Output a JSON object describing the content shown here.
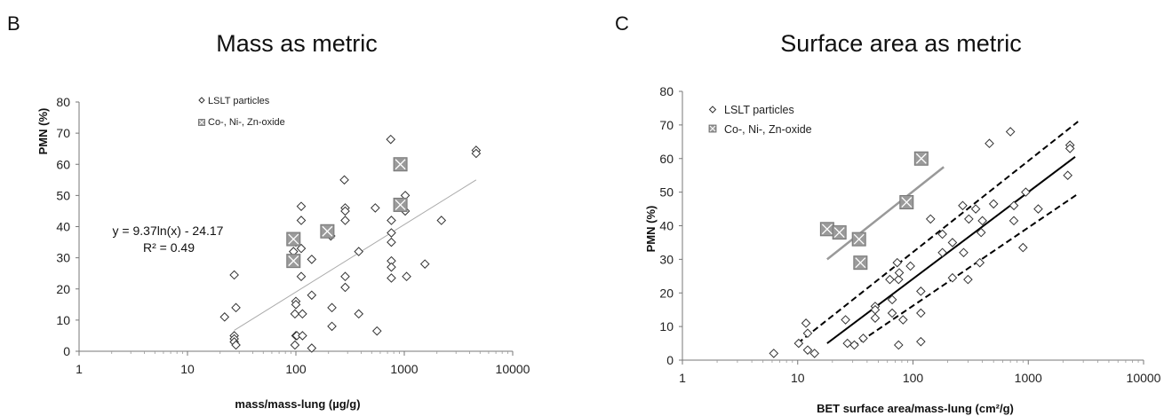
{
  "chart_data": [
    {
      "panel_letter": "B",
      "type": "scatter",
      "title": "Mass as metric",
      "xlabel": "mass/mass-lung (µg/g)",
      "ylabel": "PMN (%)",
      "xscale": "log",
      "xlim": [
        1,
        10000
      ],
      "ylim": [
        0,
        80
      ],
      "x_ticks": [
        "1",
        "10",
        "100",
        "1000",
        "10000"
      ],
      "y_ticks": [
        "0",
        "10",
        "20",
        "30",
        "40",
        "50",
        "60",
        "70",
        "80"
      ],
      "grid": false,
      "legend_position": "top-left",
      "legend": [
        "LSLT particles",
        "Co-, Ni-, Zn-oxide"
      ],
      "equation": "y = 9.37ln(x) - 24.17",
      "r_squared": "R² = 0.49",
      "trendline": {
        "x": [
          27,
          4600
        ],
        "y": [
          6.7,
          55.0
        ],
        "color": "#aaaaaa"
      },
      "series": [
        {
          "name": "LSLT particles",
          "marker": "diamond-open",
          "points": [
            [
              22,
              11
            ],
            [
              27,
              24.5
            ],
            [
              28,
              14
            ],
            [
              27,
              5
            ],
            [
              27,
              4
            ],
            [
              27,
              3
            ],
            [
              28,
              2
            ],
            [
              95,
              32
            ],
            [
              100,
              35
            ],
            [
              100,
              16
            ],
            [
              100,
              15
            ],
            [
              98,
              12
            ],
            [
              100,
              5
            ],
            [
              102,
              5
            ],
            [
              98,
              2
            ],
            [
              112,
              33
            ],
            [
              112,
              24
            ],
            [
              115,
              12
            ],
            [
              115,
              5
            ],
            [
              112,
              46.5
            ],
            [
              112,
              42
            ],
            [
              140,
              29.5
            ],
            [
              140,
              18
            ],
            [
              140,
              1
            ],
            [
              210,
              37
            ],
            [
              215,
              14
            ],
            [
              215,
              8
            ],
            [
              280,
              55
            ],
            [
              285,
              46
            ],
            [
              285,
              45
            ],
            [
              285,
              42
            ],
            [
              285,
              24
            ],
            [
              285,
              20.5
            ],
            [
              380,
              32
            ],
            [
              380,
              12
            ],
            [
              540,
              46
            ],
            [
              560,
              6.5
            ],
            [
              750,
              68
            ],
            [
              760,
              42
            ],
            [
              760,
              38
            ],
            [
              760,
              35
            ],
            [
              760,
              29
            ],
            [
              760,
              27
            ],
            [
              760,
              23.5
            ],
            [
              1020,
              50
            ],
            [
              1020,
              45
            ],
            [
              1050,
              24
            ],
            [
              1550,
              28
            ],
            [
              2200,
              42
            ],
            [
              4600,
              64.5
            ],
            [
              4600,
              63.5
            ]
          ]
        },
        {
          "name": "Co-, Ni-, Zn-oxide",
          "marker": "square-x",
          "points": [
            [
              95,
              36
            ],
            [
              95,
              29
            ],
            [
              195,
              38.5
            ],
            [
              920,
              60
            ],
            [
              920,
              47
            ]
          ]
        }
      ]
    },
    {
      "panel_letter": "C",
      "type": "scatter",
      "title": "Surface area as metric",
      "xlabel": "BET surface area/mass-lung (cm²/g)",
      "ylabel": "PMN (%)",
      "xscale": "log",
      "xlim": [
        1,
        10000
      ],
      "ylim": [
        0,
        80
      ],
      "x_ticks": [
        "1",
        "10",
        "100",
        "1000",
        "10000"
      ],
      "y_ticks": [
        "0",
        "10",
        "20",
        "30",
        "40",
        "50",
        "60",
        "70",
        "80"
      ],
      "grid": false,
      "legend_position": "top-left",
      "legend": [
        "LSLT particles",
        "Co-, Ni-, Zn-oxide"
      ],
      "lines": [
        {
          "role": "oxide-fit",
          "style": "solid",
          "color": "#999999",
          "x": [
            18,
            185
          ],
          "y": [
            30,
            57.5
          ]
        },
        {
          "role": "fit",
          "style": "solid",
          "color": "#000000",
          "x": [
            18,
            2550
          ],
          "y": [
            5,
            60.5
          ]
        },
        {
          "role": "upper-bound",
          "style": "dashed",
          "color": "#000000",
          "x": [
            10,
            2700
          ],
          "y": [
            5,
            71
          ]
        },
        {
          "role": "lower-bound",
          "style": "dashed",
          "color": "#000000",
          "x": [
            30,
            2700
          ],
          "y": [
            4,
            49.5
          ]
        }
      ],
      "series": [
        {
          "name": "LSLT particles",
          "marker": "diamond-open",
          "points": [
            [
              6.2,
              2
            ],
            [
              10.2,
              5
            ],
            [
              11.8,
              11
            ],
            [
              12.2,
              3
            ],
            [
              12.2,
              8
            ],
            [
              14,
              2
            ],
            [
              26,
              12
            ],
            [
              27,
              5
            ],
            [
              31,
              4.5
            ],
            [
              37,
              6.5
            ],
            [
              47,
              16
            ],
            [
              47,
              15
            ],
            [
              47,
              12.5
            ],
            [
              63,
              24
            ],
            [
              66,
              14
            ],
            [
              66,
              18
            ],
            [
              73,
              29
            ],
            [
              75,
              4.5
            ],
            [
              75,
              24
            ],
            [
              76,
              26
            ],
            [
              82,
              12
            ],
            [
              95,
              28
            ],
            [
              117,
              20.5
            ],
            [
              117,
              14
            ],
            [
              117,
              5.5
            ],
            [
              142,
              42
            ],
            [
              180,
              37.5
            ],
            [
              180,
              32
            ],
            [
              220,
              35
            ],
            [
              220,
              24.5
            ],
            [
              270,
              46
            ],
            [
              275,
              32
            ],
            [
              300,
              24
            ],
            [
              305,
              42
            ],
            [
              350,
              45
            ],
            [
              380,
              29
            ],
            [
              390,
              38
            ],
            [
              400,
              41.5
            ],
            [
              460,
              64.5
            ],
            [
              500,
              46.5
            ],
            [
              700,
              68
            ],
            [
              750,
              41.5
            ],
            [
              750,
              46
            ],
            [
              900,
              33.5
            ],
            [
              950,
              50
            ],
            [
              1220,
              45
            ],
            [
              2200,
              55
            ],
            [
              2300,
              64
            ],
            [
              2300,
              63
            ]
          ]
        },
        {
          "name": "Co-, Ni-, Zn-oxide",
          "marker": "square-x",
          "points": [
            [
              18,
              39
            ],
            [
              23,
              38
            ],
            [
              34,
              36
            ],
            [
              35,
              29
            ],
            [
              88,
              47
            ],
            [
              118,
              60
            ]
          ]
        }
      ]
    }
  ]
}
